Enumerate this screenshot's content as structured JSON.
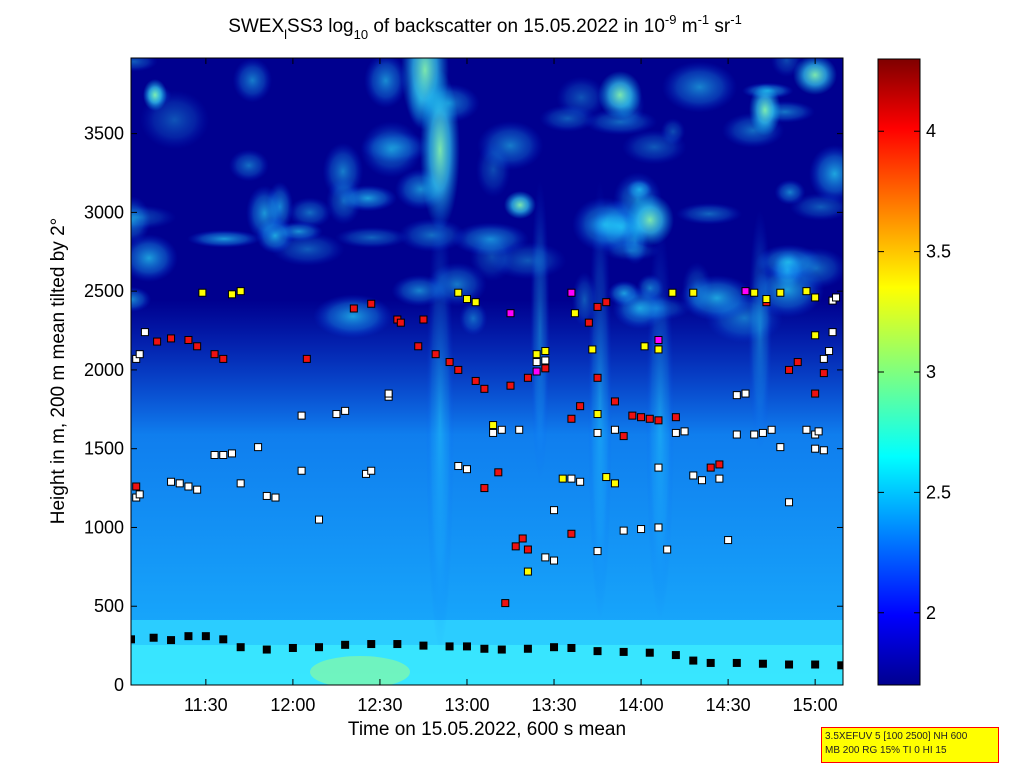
{
  "title": {
    "prefix": "SWEX",
    "subscript_l": "l",
    "name": "SS3 log",
    "log_base": "10",
    "middle": " of backscatter on 15.05.2022 in 10",
    "exp1": "-9",
    "unit_m": " m",
    "exp2": "-1",
    "unit_sr": " sr",
    "exp3": "-1"
  },
  "info_box": {
    "line1": "3.5XEFUV 5 [100 2500] NH 600",
    "line2": "MB 200 RG 15% TI 0 HI 15"
  },
  "colors": {
    "background_low": "#00008f",
    "cloud_base_marker": "#000000"
  },
  "chart_data": {
    "type": "heatmap",
    "xlabel": "Time on 15.05.2022, 600 s mean",
    "ylabel": "Height in m, 200 m mean tilted by 2°",
    "x_ticks": [
      "11:30",
      "12:00",
      "12:30",
      "13:00",
      "13:30",
      "14:00",
      "14:30",
      "15:00"
    ],
    "x_tick_hours": [
      11.5,
      12.0,
      12.5,
      13.0,
      13.5,
      14.0,
      14.5,
      15.0
    ],
    "xlim_hours": [
      11.07,
      15.16
    ],
    "y_ticks": [
      0,
      500,
      1000,
      1500,
      2000,
      2500,
      3000,
      3500
    ],
    "ylim": [
      0,
      3980
    ],
    "colorbar": {
      "colormap": "jet",
      "range": [
        1.7,
        4.3
      ],
      "ticks": [
        "2",
        "2.5",
        "3",
        "3.5",
        "4"
      ],
      "tick_values": [
        2,
        2.5,
        3,
        3.5,
        4
      ]
    },
    "grid": false,
    "series": [
      {
        "marker": "black-square",
        "points": [
          [
            11.07,
            290
          ],
          [
            11.2,
            300
          ],
          [
            11.3,
            285
          ],
          [
            11.4,
            310
          ],
          [
            11.5,
            310
          ],
          [
            11.6,
            290
          ],
          [
            11.7,
            240
          ],
          [
            11.85,
            225
          ],
          [
            12.0,
            235
          ],
          [
            12.15,
            240
          ],
          [
            12.3,
            255
          ],
          [
            12.45,
            260
          ],
          [
            12.6,
            260
          ],
          [
            12.75,
            250
          ],
          [
            12.9,
            245
          ],
          [
            13.0,
            245
          ],
          [
            13.1,
            230
          ],
          [
            13.2,
            225
          ],
          [
            13.35,
            230
          ],
          [
            13.5,
            240
          ],
          [
            13.6,
            235
          ],
          [
            13.75,
            215
          ],
          [
            13.9,
            210
          ],
          [
            14.05,
            205
          ],
          [
            14.2,
            190
          ],
          [
            14.3,
            155
          ],
          [
            14.4,
            140
          ],
          [
            14.55,
            140
          ],
          [
            14.7,
            135
          ],
          [
            14.85,
            130
          ],
          [
            15.0,
            130
          ],
          [
            15.15,
            125
          ]
        ]
      },
      {
        "marker": "white-square",
        "points": [
          [
            11.1,
            2070
          ],
          [
            11.12,
            2100
          ],
          [
            11.15,
            2240
          ],
          [
            11.1,
            1190
          ],
          [
            11.12,
            1210
          ],
          [
            11.3,
            1290
          ],
          [
            11.35,
            1280
          ],
          [
            11.4,
            1260
          ],
          [
            11.45,
            1240
          ],
          [
            11.55,
            1460
          ],
          [
            11.6,
            1460
          ],
          [
            11.65,
            1470
          ],
          [
            11.7,
            1280
          ],
          [
            11.8,
            1510
          ],
          [
            11.85,
            1200
          ],
          [
            11.9,
            1190
          ],
          [
            12.05,
            1710
          ],
          [
            12.05,
            1360
          ],
          [
            12.15,
            1050
          ],
          [
            12.25,
            1720
          ],
          [
            12.3,
            1740
          ],
          [
            12.42,
            1340
          ],
          [
            12.45,
            1360
          ],
          [
            12.55,
            1830
          ],
          [
            12.55,
            1850
          ],
          [
            12.95,
            1390
          ],
          [
            13.0,
            1370
          ],
          [
            13.15,
            1600
          ],
          [
            13.2,
            1620
          ],
          [
            13.3,
            1620
          ],
          [
            13.45,
            810
          ],
          [
            13.5,
            790
          ],
          [
            13.5,
            1110
          ],
          [
            13.6,
            1310
          ],
          [
            13.65,
            1290
          ],
          [
            13.75,
            850
          ],
          [
            13.75,
            1600
          ],
          [
            13.85,
            1620
          ],
          [
            13.9,
            980
          ],
          [
            14.0,
            990
          ],
          [
            14.1,
            1000
          ],
          [
            14.1,
            1380
          ],
          [
            14.15,
            860
          ],
          [
            14.2,
            1600
          ],
          [
            14.25,
            1610
          ],
          [
            14.3,
            1330
          ],
          [
            14.35,
            1300
          ],
          [
            14.45,
            1310
          ],
          [
            14.5,
            920
          ],
          [
            14.55,
            1590
          ],
          [
            14.65,
            1590
          ],
          [
            14.7,
            1600
          ],
          [
            14.75,
            1620
          ],
          [
            14.85,
            1160
          ],
          [
            14.95,
            1620
          ],
          [
            15.0,
            1500
          ],
          [
            15.05,
            1490
          ],
          [
            15.1,
            2440
          ],
          [
            15.12,
            2460
          ],
          [
            15.05,
            2070
          ],
          [
            15.08,
            2120
          ],
          [
            15.1,
            2240
          ],
          [
            15.0,
            1590
          ],
          [
            15.02,
            1610
          ],
          [
            14.55,
            1840
          ],
          [
            14.6,
            1850
          ],
          [
            14.8,
            1510
          ],
          [
            13.4,
            2050
          ],
          [
            13.45,
            2060
          ]
        ]
      },
      {
        "marker": "red-square",
        "points": [
          [
            11.22,
            2180
          ],
          [
            11.3,
            2200
          ],
          [
            11.4,
            2190
          ],
          [
            11.45,
            2150
          ],
          [
            11.55,
            2100
          ],
          [
            11.6,
            2070
          ],
          [
            11.1,
            1260
          ],
          [
            12.08,
            2070
          ],
          [
            12.35,
            2390
          ],
          [
            12.45,
            2420
          ],
          [
            12.6,
            2320
          ],
          [
            12.62,
            2300
          ],
          [
            12.75,
            2320
          ],
          [
            12.72,
            2150
          ],
          [
            12.82,
            2100
          ],
          [
            12.9,
            2050
          ],
          [
            12.95,
            2000
          ],
          [
            13.05,
            1930
          ],
          [
            13.1,
            1880
          ],
          [
            13.25,
            1900
          ],
          [
            13.35,
            1950
          ],
          [
            13.45,
            2010
          ],
          [
            13.1,
            1250
          ],
          [
            13.18,
            1350
          ],
          [
            13.28,
            880
          ],
          [
            13.32,
            930
          ],
          [
            13.35,
            860
          ],
          [
            13.22,
            520
          ],
          [
            13.6,
            1690
          ],
          [
            13.65,
            1770
          ],
          [
            13.7,
            2300
          ],
          [
            13.75,
            2400
          ],
          [
            13.8,
            2430
          ],
          [
            13.6,
            960
          ],
          [
            13.75,
            1950
          ],
          [
            13.85,
            1800
          ],
          [
            13.9,
            1580
          ],
          [
            13.95,
            1710
          ],
          [
            14.0,
            1700
          ],
          [
            14.05,
            1690
          ],
          [
            14.1,
            1680
          ],
          [
            14.2,
            1700
          ],
          [
            14.4,
            1380
          ],
          [
            14.45,
            1400
          ],
          [
            14.72,
            2430
          ],
          [
            14.85,
            2000
          ],
          [
            14.9,
            2050
          ],
          [
            15.0,
            1850
          ],
          [
            15.05,
            1980
          ]
        ]
      },
      {
        "marker": "yellow-square",
        "points": [
          [
            11.48,
            2490
          ],
          [
            11.65,
            2480
          ],
          [
            11.7,
            2500
          ],
          [
            12.95,
            2490
          ],
          [
            13.0,
            2450
          ],
          [
            13.05,
            2430
          ],
          [
            13.15,
            1650
          ],
          [
            13.4,
            2100
          ],
          [
            13.45,
            2120
          ],
          [
            13.35,
            720
          ],
          [
            13.62,
            2360
          ],
          [
            13.72,
            2130
          ],
          [
            13.75,
            1720
          ],
          [
            13.8,
            1320
          ],
          [
            13.85,
            1280
          ],
          [
            14.02,
            2150
          ],
          [
            14.1,
            2130
          ],
          [
            14.18,
            2490
          ],
          [
            14.3,
            2490
          ],
          [
            14.65,
            2490
          ],
          [
            14.72,
            2450
          ],
          [
            14.8,
            2490
          ],
          [
            14.95,
            2500
          ],
          [
            15.0,
            2220
          ],
          [
            15.0,
            2460
          ],
          [
            13.55,
            1310
          ]
        ]
      },
      {
        "marker": "magenta-square",
        "points": [
          [
            13.25,
            2360
          ],
          [
            13.4,
            1990
          ],
          [
            13.6,
            2490
          ],
          [
            14.1,
            2190
          ],
          [
            14.6,
            2500
          ]
        ]
      }
    ]
  }
}
